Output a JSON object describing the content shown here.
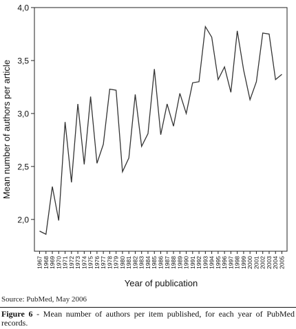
{
  "chart_data": {
    "type": "line",
    "title": "",
    "xlabel": "Year of publication",
    "ylabel": "Mean number of authors per article",
    "ylim": [
      1.7,
      4.0
    ],
    "yticks": [
      "2,0",
      "2,5",
      "3,0",
      "3,5",
      "4,0"
    ],
    "ytick_values": [
      2.0,
      2.5,
      3.0,
      3.5,
      4.0
    ],
    "grid": false,
    "line_color": "#333333",
    "x": [
      "1967",
      "1968",
      "1969",
      "1970",
      "1971",
      "1972",
      "1973",
      "1974",
      "1975",
      "1976",
      "1977",
      "1978",
      "1979",
      "1980",
      "1981",
      "1982",
      "1983",
      "1984",
      "1985",
      "1986",
      "1987",
      "1988",
      "1989",
      "1990",
      "1991",
      "1992",
      "1993",
      "1994",
      "1995",
      "1996",
      "1997",
      "1998",
      "1999",
      "2000",
      "2001",
      "2002",
      "2003",
      "2004",
      "2005"
    ],
    "series": [
      {
        "values": [
          1.89,
          1.86,
          2.31,
          1.99,
          2.92,
          2.35,
          3.09,
          2.52,
          3.16,
          2.53,
          2.71,
          3.23,
          3.22,
          2.45,
          2.58,
          3.18,
          2.69,
          2.81,
          3.42,
          2.8,
          3.09,
          2.88,
          3.19,
          3.0,
          3.29,
          3.3,
          3.82,
          3.72,
          3.32,
          3.44,
          3.2,
          3.78,
          3.41,
          3.13,
          3.3,
          3.76,
          3.75,
          3.32,
          3.37
        ]
      }
    ]
  },
  "source": "Source: PubMed, May 2006",
  "caption": {
    "label": "Figure 6",
    "text": " - Mean number of authors per item published, for each year of PubMed records."
  }
}
